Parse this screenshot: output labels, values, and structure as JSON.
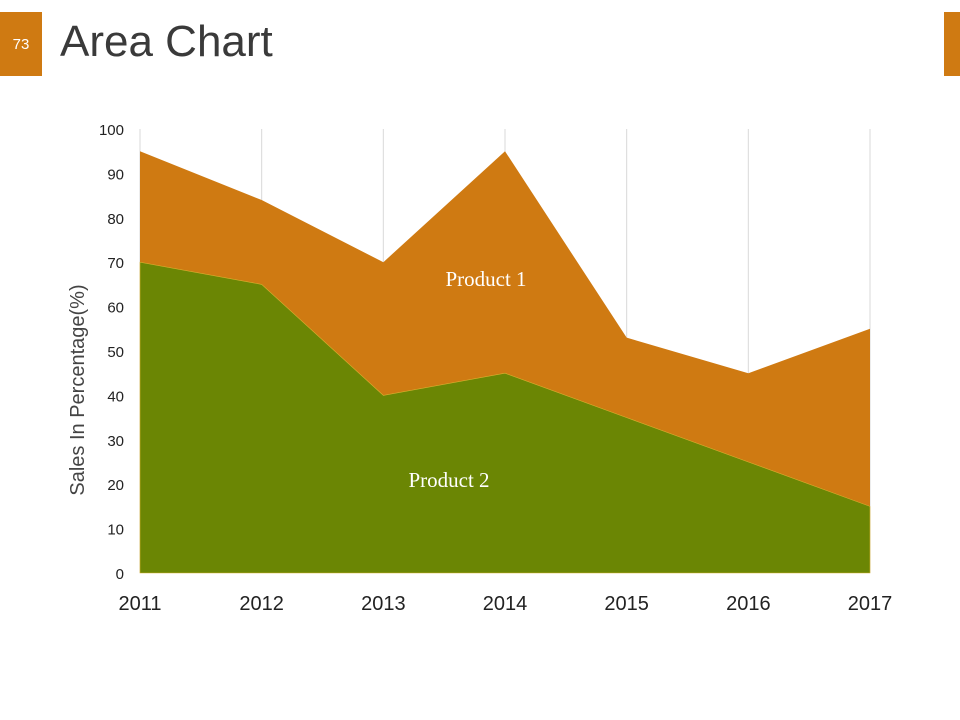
{
  "slide": {
    "number": "73",
    "title": "Area Chart"
  },
  "colors": {
    "accent": "#CF7A12",
    "product1": "#CF7A12",
    "product2": "#6B8604",
    "grid": "#D9D9D9"
  },
  "chart_data": {
    "type": "area",
    "title": "",
    "xlabel": "",
    "ylabel": "Sales In Percentage(%)",
    "x": [
      "2011",
      "2012",
      "2013",
      "2014",
      "2015",
      "2016",
      "2017"
    ],
    "ylim": [
      0,
      100
    ],
    "yticks": [
      "0",
      "10",
      "20",
      "30",
      "40",
      "50",
      "60",
      "70",
      "80",
      "90",
      "100"
    ],
    "series": [
      {
        "name": "Product 1",
        "values": [
          95,
          84,
          70,
          95,
          53,
          45,
          55
        ]
      },
      {
        "name": "Product 2",
        "values": [
          70,
          65,
          40,
          45,
          35,
          25,
          15
        ]
      }
    ],
    "grid": "vertical",
    "legend": "inline data labels"
  }
}
